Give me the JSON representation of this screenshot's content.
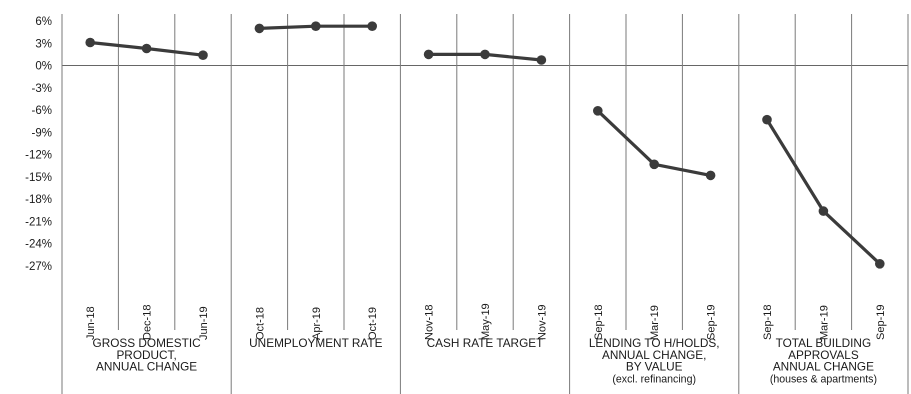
{
  "chart_data": {
    "type": "line",
    "ylim": [
      -27,
      6
    ],
    "yticks": [
      "6%",
      "3%",
      "0%",
      "-3%",
      "-6%",
      "-9%",
      "-12%",
      "-15%",
      "-18%",
      "-21%",
      "-24%",
      "-27%"
    ],
    "ytick_values": [
      6,
      3,
      0,
      -3,
      -6,
      -9,
      -12,
      -15,
      -18,
      -21,
      -24,
      -27
    ],
    "grid": true,
    "legend": "none",
    "colors": {
      "line": "#3b3b3b",
      "grid": "#7a7a7a"
    },
    "groups": [
      {
        "label_lines": [
          "GROSS DOMESTIC",
          "PRODUCT,",
          "ANNUAL CHANGE"
        ],
        "categories": [
          "Jun-18",
          "Dec-18",
          "Jun-19"
        ],
        "values": [
          3.1,
          2.3,
          1.4
        ]
      },
      {
        "label_lines": [
          "UNEMPLOYMENT RATE"
        ],
        "categories": [
          "Oct-18",
          "Apr-19",
          "Oct-19"
        ],
        "values": [
          5.0,
          5.3,
          5.3
        ]
      },
      {
        "label_lines": [
          "CASH RATE TARGET"
        ],
        "categories": [
          "Nov-18",
          "May-19",
          "Nov-19"
        ],
        "values": [
          1.5,
          1.5,
          0.75
        ]
      },
      {
        "label_lines": [
          "LENDING TO H/HOLDS,",
          "ANNUAL CHANGE,",
          "BY VALUE",
          "(excl. refinancing)"
        ],
        "categories": [
          "Sep-18",
          "Mar-19",
          "Sep-19"
        ],
        "values": [
          -6.1,
          -13.3,
          -14.8
        ]
      },
      {
        "label_lines": [
          "TOTAL BUILDING",
          "APPROVALS",
          "ANNUAL CHANGE",
          "(houses & apartments)"
        ],
        "categories": [
          "Sep-18",
          "Mar-19",
          "Sep-19"
        ],
        "values": [
          -7.3,
          -19.6,
          -26.7
        ]
      }
    ]
  }
}
